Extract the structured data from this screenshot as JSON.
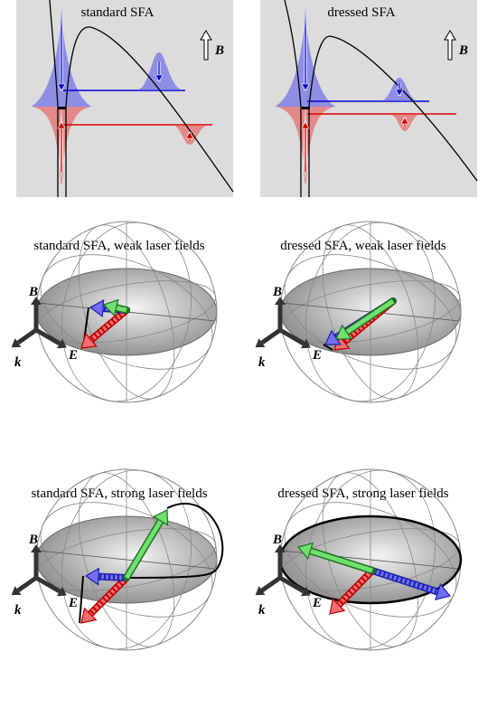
{
  "top_panels": [
    {
      "title": "standard SFA",
      "field_label": "B"
    },
    {
      "title": "dressed SFA",
      "field_label": "B"
    }
  ],
  "sphere_panels": [
    {
      "title": "standard SFA, weak laser fields",
      "axes": {
        "b": "B",
        "e": "E",
        "k": "k"
      }
    },
    {
      "title": "dressed SFA, weak laser fields",
      "axes": {
        "b": "B",
        "e": "E",
        "k": "k"
      }
    },
    {
      "title": "standard SFA, strong laser fields",
      "axes": {
        "b": "B",
        "e": "E",
        "k": "k"
      }
    },
    {
      "title": "dressed SFA, strong laser fields",
      "axes": {
        "b": "B",
        "e": "E",
        "k": "k"
      }
    }
  ]
}
